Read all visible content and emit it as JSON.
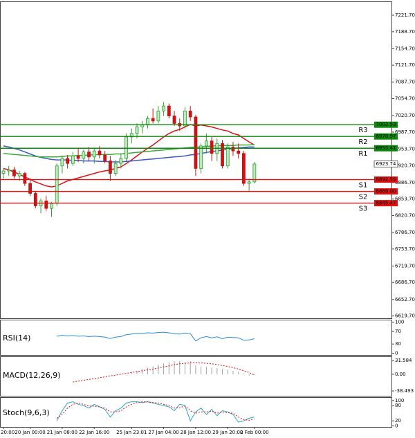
{
  "chart_data": {
    "type": "candlestick",
    "categories": [
      "20:00",
      null,
      null,
      null,
      null,
      "20 Jan 00:00",
      null,
      null,
      null,
      null,
      null,
      "21 Jan 08:00",
      null,
      null,
      null,
      null,
      null,
      "22 Jan 16:00",
      null,
      null,
      null,
      null,
      null,
      null,
      "25 Jan 23:01",
      null,
      null,
      null,
      null,
      null,
      "27 Jan 04:00",
      null,
      null,
      null,
      null,
      null,
      "28 Jan 12:00",
      null,
      null,
      null,
      null,
      null,
      "29 Jan 20:00",
      null,
      null,
      null,
      null,
      "2 Feb 00:00"
    ],
    "ylim": [
      6615,
      7248
    ],
    "yticks": [
      {
        "value": 7221.7,
        "label": "7221.70"
      },
      {
        "value": 7188.7,
        "label": "7188.70"
      },
      {
        "value": 7154.7,
        "label": "7154.70"
      },
      {
        "value": 7121.7,
        "label": "7121.70"
      },
      {
        "value": 7087.7,
        "label": "7087.70"
      },
      {
        "value": 7054.7,
        "label": "7054.70"
      },
      {
        "value": 7020.7,
        "label": "7020.70"
      },
      {
        "value": 6987.7,
        "label": "6987.70"
      },
      {
        "value": 6953.7,
        "label": "6953.70"
      },
      {
        "value": 6920.7,
        "label": "6920.70"
      },
      {
        "value": 6886.7,
        "label": "6886.70"
      },
      {
        "value": 6853.7,
        "label": "6853.70"
      },
      {
        "value": 6820.7,
        "label": "6820.70"
      },
      {
        "value": 6786.7,
        "label": "6786.70"
      },
      {
        "value": 6753.7,
        "label": "6753.70"
      },
      {
        "value": 6719.7,
        "label": "6719.70"
      },
      {
        "value": 6686.7,
        "label": "6686.70"
      },
      {
        "value": 6652.7,
        "label": "6652.70"
      },
      {
        "value": 6619.7,
        "label": "6619.70"
      }
    ],
    "open": [
      6905,
      6910,
      6912,
      6900,
      6905,
      6885,
      6865,
      6840,
      6850,
      6835,
      6845,
      6920,
      6935,
      6925,
      6940,
      6935,
      6948,
      6938,
      6950,
      6942,
      6930,
      6905,
      6925,
      6935,
      6978,
      6985,
      6998,
      7002,
      7015,
      7010,
      7030,
      7040,
      7020,
      7005,
      7000,
      7030,
      7018,
      6915,
      6960,
      6970,
      6945,
      6965,
      6920,
      6958,
      6950,
      6945,
      6885,
      6888
    ],
    "high": [
      6915,
      6920,
      6918,
      6910,
      6908,
      6895,
      6870,
      6855,
      6860,
      6848,
      6925,
      6940,
      6942,
      6948,
      6955,
      6952,
      6958,
      6955,
      6960,
      6950,
      6940,
      6932,
      6945,
      6985,
      6995,
      7005,
      7010,
      7020,
      7035,
      7040,
      7048,
      7045,
      7030,
      7015,
      7038,
      7040,
      7022,
      6965,
      6985,
      6978,
      6975,
      6972,
      6965,
      6968,
      6965,
      6950,
      6895,
      6928
    ],
    "low": [
      6895,
      6900,
      6895,
      6890,
      6880,
      6860,
      6835,
      6825,
      6830,
      6818,
      6840,
      6905,
      6915,
      6920,
      6928,
      6925,
      6930,
      6925,
      6935,
      6925,
      6890,
      6900,
      6915,
      6930,
      6965,
      6975,
      6985,
      6995,
      7005,
      7005,
      7020,
      7015,
      7000,
      6990,
      6995,
      7010,
      6900,
      6905,
      6945,
      6930,
      6930,
      6915,
      6915,
      6940,
      6935,
      6880,
      6870,
      6885
    ],
    "close": [
      6910,
      6912,
      6900,
      6905,
      6885,
      6865,
      6840,
      6850,
      6835,
      6845,
      6920,
      6935,
      6925,
      6940,
      6935,
      6948,
      6938,
      6950,
      6942,
      6930,
      6905,
      6925,
      6935,
      6978,
      6985,
      6998,
      7002,
      7015,
      7010,
      7030,
      7040,
      7020,
      7005,
      7000,
      7030,
      7018,
      6915,
      6960,
      6970,
      6945,
      6965,
      6920,
      6958,
      6950,
      6945,
      6885,
      6888,
      6924
    ],
    "up_color": "#2e9e2e",
    "down_color": "#c81414",
    "series": [
      {
        "color": "#e01010",
        "values": [
          6915,
          6912,
          6908,
          6903,
          6898,
          6893,
          6888,
          6884,
          6880,
          6878,
          6880,
          6885,
          6890,
          6893,
          6896,
          6899,
          6902,
          6905,
          6908,
          6910,
          6912,
          6915,
          6918,
          6925,
          6932,
          6940,
          6948,
          6955,
          6962,
          6970,
          6978,
          6985,
          6990,
          6993,
          6998,
          7003,
          7000,
          7002,
          7000,
          6998,
          6995,
          6992,
          6990,
          6985,
          6982,
          6975,
          6968,
          6962
        ]
      },
      {
        "color": "#3a56c8",
        "values": [
          6960,
          6958,
          6955,
          6952,
          6948,
          6944,
          6940,
          6937,
          6935,
          6933,
          6932,
          6932,
          6932,
          6931,
          6931,
          6930,
          6930,
          6930,
          6929,
          6929,
          6928,
          6928,
          6928,
          6929,
          6930,
          6931,
          6932,
          6933,
          6934,
          6935,
          6936,
          6937,
          6938,
          6939,
          6940,
          6942,
          6943,
          6945,
          6947,
          6949,
          6950,
          6952,
          6953,
          6955,
          6956,
          6957,
          6958,
          6958
        ]
      },
      {
        "color": "#3aa83a",
        "values": [
          6945,
          6944,
          6943,
          6942,
          6941,
          6940,
          6939,
          6938,
          6938,
          6938,
          6938,
          6939,
          6940,
          6940,
          6941,
          6941,
          6942,
          6942,
          6943,
          6943,
          6943,
          6944,
          6944,
          6945,
          6946,
          6947,
          6948,
          6949,
          6950,
          6951,
          6952,
          6953,
          6954,
          6955,
          6956,
          6957,
          6958,
          6958,
          6959,
          6960,
          6960,
          6961,
          6961,
          6961,
          6962,
          6962,
          6962,
          6963
        ]
      }
    ],
    "levels": [
      {
        "name": "R3",
        "value": 7002.53,
        "color": "#0a8a0a"
      },
      {
        "name": "R2",
        "value": 6978.97,
        "color": "#0a8a0a"
      },
      {
        "name": "R1",
        "value": 6955.41,
        "color": "#0a8a0a"
      },
      {
        "name": "S1",
        "value": 6892.59,
        "color": "#e01010"
      },
      {
        "name": "S2",
        "value": 6869,
        "value_label": "6869.00",
        "color": "#e01010"
      },
      {
        "name": "S3",
        "value": 6845.47,
        "color": "#e01010"
      }
    ],
    "last_price": 6923.74,
    "panels": [
      {
        "type": "line",
        "title": "RSI(14)",
        "ylim": [
          -5,
          108
        ],
        "yticks": [
          100,
          70,
          30,
          0
        ],
        "series": [
          {
            "color": "#2a8ad8",
            "values": [
              null,
              null,
              null,
              null,
              null,
              null,
              null,
              null,
              null,
              null,
              55,
              58,
              56,
              57,
              55,
              56,
              54,
              55,
              54,
              52,
              48,
              52,
              54,
              60,
              62,
              64,
              64,
              66,
              65,
              67,
              68,
              66,
              63,
              62,
              65,
              63,
              40,
              50,
              54,
              50,
              53,
              47,
              52,
              51,
              50,
              42,
              43,
              47
            ]
          }
        ]
      },
      {
        "type": "macd",
        "title": "MACD(12,26,9)",
        "ylim": [
          -49.6,
          41.1
        ],
        "yticks": [
          31.584,
          {
            "value": 0,
            "label": "0.00"
          },
          -38.493
        ],
        "histogram_color": "#a0a0a0",
        "histogram": [
          null,
          null,
          null,
          null,
          null,
          null,
          null,
          null,
          null,
          null,
          null,
          null,
          null,
          null,
          null,
          null,
          null,
          null,
          null,
          null,
          null,
          null,
          null,
          null,
          5,
          8,
          12,
          15,
          18,
          22,
          25,
          28,
          30,
          30,
          28,
          30,
          20,
          18,
          17,
          15,
          14,
          12,
          10,
          8,
          5,
          2,
          -3,
          -2
        ],
        "signal_color": "#e01010",
        "signal": [
          null,
          null,
          null,
          null,
          null,
          null,
          null,
          null,
          null,
          null,
          null,
          null,
          null,
          -18,
          -16,
          -14,
          -12,
          -10,
          -8,
          -6,
          -4,
          -2,
          0,
          2,
          4,
          6,
          8,
          10,
          12,
          14,
          17,
          19,
          22,
          24,
          25,
          26,
          27,
          26,
          25,
          24,
          22,
          20,
          18,
          15,
          12,
          8,
          4,
          -2
        ]
      },
      {
        "type": "line",
        "title": "Stoch(9,6,3)",
        "ylim": [
          -4,
          113
        ],
        "yticks": [
          100,
          80,
          20,
          0
        ],
        "series": [
          {
            "color": "#2aa8c8",
            "values": [
              null,
              null,
              null,
              null,
              null,
              null,
              null,
              null,
              null,
              null,
              20,
              60,
              90,
              95,
              85,
              80,
              70,
              85,
              75,
              65,
              35,
              60,
              70,
              90,
              95,
              95,
              92,
              95,
              90,
              85,
              80,
              75,
              60,
              85,
              80,
              20,
              55,
              70,
              45,
              65,
              40,
              60,
              55,
              45,
              15,
              20,
              30,
              35
            ]
          },
          {
            "color": "#e01010",
            "dashed": true,
            "values": [
              null,
              null,
              null,
              null,
              null,
              null,
              null,
              null,
              null,
              null,
              30,
              45,
              70,
              85,
              90,
              85,
              78,
              78,
              75,
              70,
              55,
              55,
              60,
              75,
              85,
              92,
              95,
              95,
              92,
              90,
              85,
              80,
              70,
              72,
              78,
              60,
              50,
              55,
              55,
              58,
              50,
              55,
              52,
              50,
              35,
              25,
              22,
              28
            ]
          }
        ]
      }
    ]
  }
}
